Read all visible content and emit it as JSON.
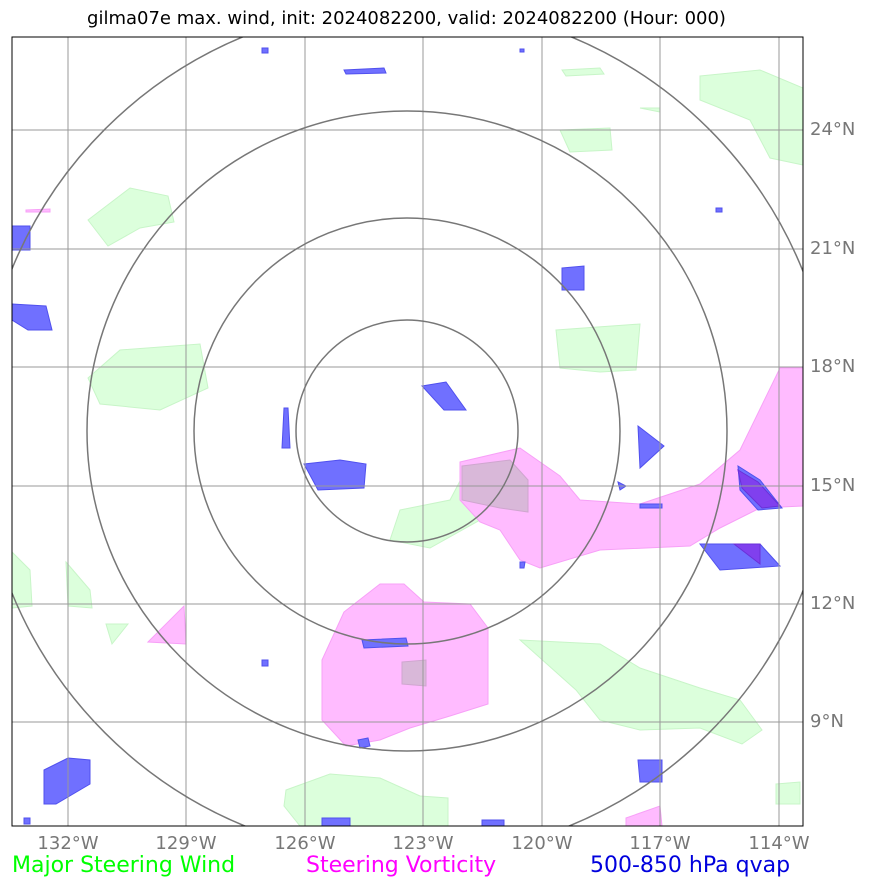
{
  "title": "gilma07e max. wind, init: 2024082200, valid: 2024082200 (Hour: 000)",
  "lat_labels": [
    "24°N",
    "21°N",
    "18°N",
    "15°N",
    "12°N",
    "9°N"
  ],
  "lon_labels": [
    "132°W",
    "129°W",
    "126°W",
    "123°W",
    "120°W",
    "117°W",
    "114°W"
  ],
  "legend": [
    {
      "label": "Major Steering Wind",
      "color": "#00ff00"
    },
    {
      "label": "Steering Vorticity",
      "color": "#ff00ff"
    },
    {
      "label": "500-850 hPa qvap",
      "color": "#0000dd"
    }
  ],
  "colors": {
    "wind_fill": "#dcffdc",
    "vorticity_fill": "#ffbbff",
    "qvap_fill": "#7070ff",
    "grid": "#999999",
    "range_rings": "#777777"
  }
}
